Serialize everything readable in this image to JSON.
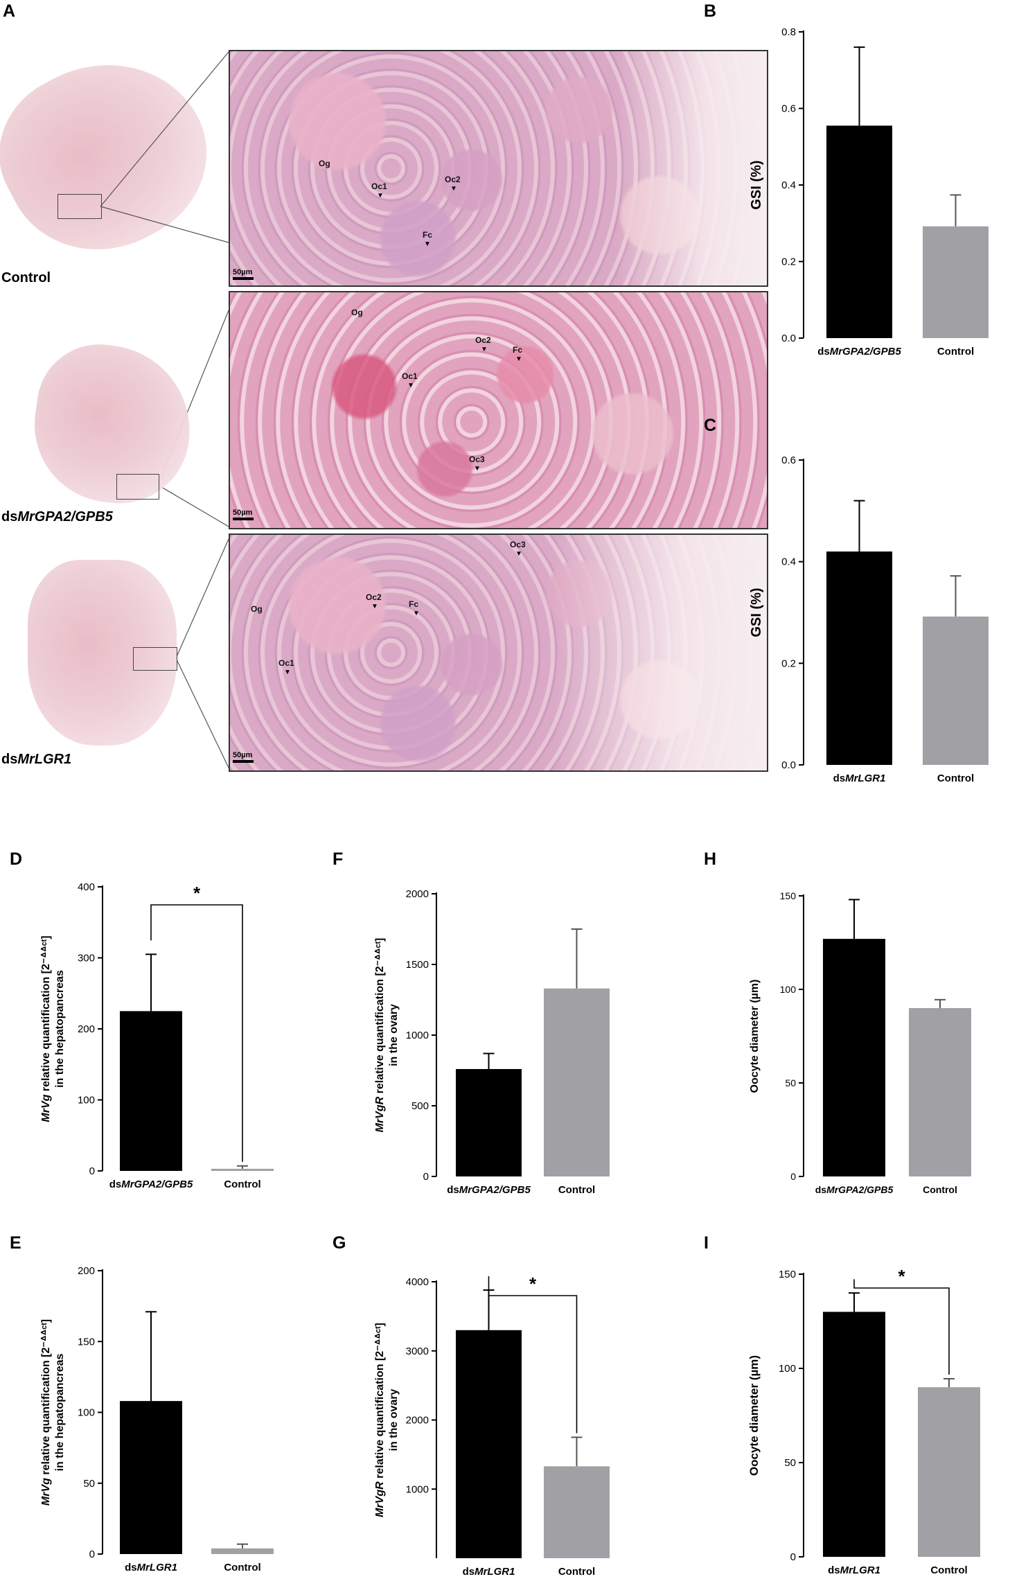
{
  "histology": {
    "panel_letter": "A",
    "rows": [
      {
        "label_parts": [
          "Control"
        ],
        "markers": [
          "Og",
          "Oc1",
          "Oc2",
          "Fc"
        ],
        "scale": "50µm"
      },
      {
        "label_parts": [
          "ds",
          "MrGPA2/GPB5"
        ],
        "markers": [
          "Og",
          "Oc1",
          "Oc2",
          "Fc",
          "Oc3"
        ],
        "scale": "50µm"
      },
      {
        "label_parts": [
          "ds",
          "MrLGR1"
        ],
        "markers": [
          "Og",
          "Oc1",
          "Oc2",
          "Fc",
          "Oc3"
        ],
        "scale": "50µm"
      }
    ]
  },
  "colors": {
    "treatment": "#000000",
    "control": "#a0a0a5"
  },
  "chart_data": [
    {
      "id": "B",
      "type": "bar",
      "categories": [
        "dsMrGPA2/GPB5",
        "Control"
      ],
      "values": [
        0.555,
        0.292
      ],
      "errors": [
        0.205,
        0.082
      ],
      "ylabel": "GSI (%)",
      "ylim": [
        0,
        0.8
      ],
      "yticks": [
        "0.0",
        "0.2",
        "0.4",
        "0.6",
        "0.8"
      ],
      "significance": ""
    },
    {
      "id": "C",
      "type": "bar",
      "categories": [
        "dsMrLGR1",
        "Control"
      ],
      "values": [
        0.42,
        0.292
      ],
      "errors": [
        0.1,
        0.08
      ],
      "ylabel": "GSI (%)",
      "ylim": [
        0,
        0.6
      ],
      "yticks": [
        "0.0",
        "0.2",
        "0.4",
        "0.6"
      ],
      "significance": ""
    },
    {
      "id": "D",
      "type": "bar",
      "categories": [
        "dsMrGPA2/GPB5",
        "Control"
      ],
      "values": [
        225,
        3
      ],
      "errors": [
        80,
        4
      ],
      "ylabel": "MrVg relative quantification [2^-ΔΔCt] in the hepatopancreas",
      "ylim": [
        0,
        400
      ],
      "yticks": [
        "0",
        "100",
        "200",
        "300",
        "400"
      ],
      "significance": "*"
    },
    {
      "id": "E",
      "type": "bar",
      "categories": [
        "dsMrLGR1",
        "Control"
      ],
      "values": [
        108,
        4
      ],
      "errors": [
        63,
        3
      ],
      "ylabel": "MrVg relative quantification [2^-ΔΔCt] in the hepatopancreas",
      "ylim": [
        0,
        200
      ],
      "yticks": [
        "0",
        "50",
        "100",
        "150",
        "200"
      ],
      "significance": ""
    },
    {
      "id": "F",
      "type": "bar",
      "categories": [
        "dsMrGPA2/GPB5",
        "Control"
      ],
      "values": [
        760,
        1330
      ],
      "errors": [
        110,
        420
      ],
      "ylabel": "MrVgR relative quantification [2^-ΔΔCt] in the ovary",
      "ylim": [
        0,
        2000
      ],
      "yticks": [
        "0",
        "500",
        "1000",
        "1500",
        "2000"
      ],
      "significance": ""
    },
    {
      "id": "G",
      "type": "bar",
      "categories": [
        "dsMrLGR1",
        "Control"
      ],
      "values": [
        3300,
        1330
      ],
      "errors": [
        580,
        420
      ],
      "ylabel": "MrVgR relative quantification [2^-ΔΔCt] in the ovary",
      "ylim": [
        0,
        4000
      ],
      "yticks": [
        "1000",
        "2000",
        "3000",
        "4000"
      ],
      "significance": "*"
    },
    {
      "id": "H",
      "type": "bar",
      "categories": [
        "dsMrGPA2/GPB5",
        "Control"
      ],
      "values": [
        127,
        90
      ],
      "errors": [
        21,
        4.5
      ],
      "ylabel": "Oocyte diameter (µm)",
      "ylim": [
        0,
        150
      ],
      "yticks": [
        "0",
        "50",
        "100",
        "150"
      ],
      "significance": ""
    },
    {
      "id": "I",
      "type": "bar",
      "categories": [
        "dsMrLGR1",
        "Control"
      ],
      "values": [
        130,
        90
      ],
      "errors": [
        10,
        4.5
      ],
      "ylabel": "Oocyte diameter (µm)",
      "ylim": [
        0,
        150
      ],
      "yticks": [
        "0",
        "50",
        "100",
        "150"
      ],
      "significance": "*"
    }
  ]
}
